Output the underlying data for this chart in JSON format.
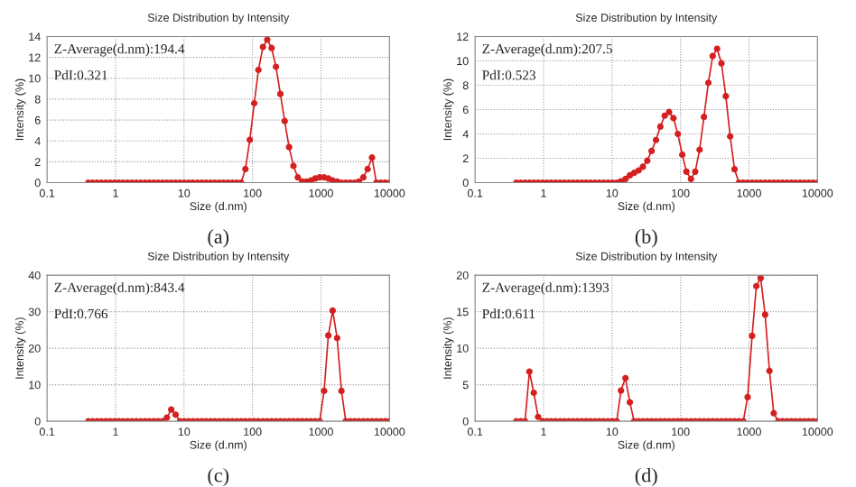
{
  "chart_data": [
    {
      "type": "line",
      "title": "Size Distribution by Intensity",
      "xlabel": "Size (d.nm)",
      "ylabel": "Intensity (%)",
      "log": "x",
      "grid": true,
      "marker": "circle",
      "line_style": "solid",
      "color": "#d42020",
      "xlim": [
        0.1,
        10000
      ],
      "xticks": [
        0.1,
        1,
        10,
        100,
        1000,
        10000
      ],
      "ylim": [
        0,
        14
      ],
      "yticks": [
        0,
        2,
        4,
        6,
        8,
        10,
        12,
        14
      ],
      "annotations": [
        "Z-Average(d.nm):194.4",
        "PdI:0.321",
        "(a)"
      ],
      "x": [
        0.4,
        0.463,
        0.537,
        0.621,
        0.72,
        0.833,
        0.965,
        1.12,
        1.29,
        1.5,
        1.74,
        2.01,
        2.33,
        2.7,
        3.12,
        3.62,
        4.19,
        4.85,
        5.62,
        6.5,
        7.53,
        8.72,
        10.1,
        11.7,
        13.5,
        15.7,
        18.2,
        21,
        24.4,
        28.2,
        32.7,
        37.8,
        43.8,
        50.8,
        58.8,
        68.1,
        78.8,
        91.3,
        106,
        122,
        142,
        164,
        190,
        220,
        255,
        295,
        342,
        396,
        459,
        531,
        615,
        712,
        825,
        955,
        1110,
        1280,
        1480,
        1720,
        1990,
        2300,
        2670,
        3090,
        3580,
        4150,
        4800,
        5560,
        6440,
        7460,
        8630,
        10000
      ],
      "values": [
        0,
        0,
        0,
        0,
        0,
        0,
        0,
        0,
        0,
        0,
        0,
        0,
        0,
        0,
        0,
        0,
        0,
        0,
        0,
        0,
        0,
        0,
        0,
        0,
        0,
        0,
        0,
        0,
        0,
        0,
        0,
        0,
        0,
        0,
        0,
        0,
        1.3,
        4.1,
        7.6,
        10.8,
        13.0,
        13.7,
        12.9,
        11.1,
        8.5,
        5.9,
        3.4,
        1.6,
        0.5,
        0.1,
        0.1,
        0.2,
        0.4,
        0.5,
        0.5,
        0.4,
        0.2,
        0.1,
        0,
        0,
        0,
        0,
        0.1,
        0.5,
        1.3,
        2.4,
        0,
        0,
        0,
        0
      ]
    },
    {
      "type": "line",
      "title": "Size Distribution by Intensity",
      "xlabel": "Size (d.nm)",
      "ylabel": "Intensity (%)",
      "log": "x",
      "grid": true,
      "marker": "circle",
      "line_style": "solid",
      "color": "#d42020",
      "xlim": [
        0.1,
        10000
      ],
      "xticks": [
        0.1,
        1,
        10,
        100,
        1000,
        10000
      ],
      "ylim": [
        0,
        12
      ],
      "yticks": [
        0,
        2,
        4,
        6,
        8,
        10,
        12
      ],
      "annotations": [
        "Z-Average(d.nm):207.5",
        "PdI:0.523",
        "(b)"
      ],
      "x": [
        0.4,
        0.463,
        0.537,
        0.621,
        0.72,
        0.833,
        0.965,
        1.12,
        1.29,
        1.5,
        1.74,
        2.01,
        2.33,
        2.7,
        3.12,
        3.62,
        4.19,
        4.85,
        5.62,
        6.5,
        7.53,
        8.72,
        10.1,
        11.7,
        13.5,
        15.7,
        18.2,
        21,
        24.4,
        28.2,
        32.7,
        37.8,
        43.8,
        50.8,
        58.8,
        68.1,
        78.8,
        91.3,
        106,
        122,
        142,
        164,
        190,
        220,
        255,
        295,
        342,
        396,
        459,
        531,
        615,
        712,
        825,
        955,
        1110,
        1280,
        1480,
        1720,
        1990,
        2300,
        2670,
        3090,
        3580,
        4150,
        4800,
        5560,
        6440,
        7460,
        8630,
        10000
      ],
      "values": [
        0,
        0,
        0,
        0,
        0,
        0,
        0,
        0,
        0,
        0,
        0,
        0,
        0,
        0,
        0,
        0,
        0,
        0,
        0,
        0,
        0,
        0,
        0,
        0,
        0.1,
        0.3,
        0.6,
        0.8,
        1.0,
        1.3,
        1.8,
        2.6,
        3.5,
        4.6,
        5.5,
        5.8,
        5.3,
        4.0,
        2.3,
        0.9,
        0.3,
        0.9,
        2.7,
        5.4,
        8.2,
        10.4,
        11.0,
        9.8,
        7.1,
        3.8,
        1.1,
        0,
        0,
        0,
        0,
        0,
        0,
        0,
        0,
        0,
        0,
        0,
        0,
        0,
        0,
        0,
        0,
        0,
        0,
        0
      ]
    },
    {
      "type": "line",
      "title": "Size Distribution by Intensity",
      "xlabel": "Size (d.nm)",
      "ylabel": "Intensity (%)",
      "log": "x",
      "grid": true,
      "marker": "circle",
      "line_style": "solid",
      "color": "#d42020",
      "xlim": [
        0.1,
        10000
      ],
      "xticks": [
        0.1,
        1,
        10,
        100,
        1000,
        10000
      ],
      "ylim": [
        0,
        40
      ],
      "yticks": [
        0,
        10,
        20,
        30,
        40
      ],
      "annotations": [
        "Z-Average(d.nm):843.4",
        "PdI:0.766",
        "(c)"
      ],
      "x": [
        0.4,
        0.463,
        0.537,
        0.621,
        0.72,
        0.833,
        0.965,
        1.12,
        1.29,
        1.5,
        1.74,
        2.01,
        2.33,
        2.7,
        3.12,
        3.62,
        4.19,
        4.85,
        5.62,
        6.5,
        7.53,
        8.72,
        10.1,
        11.7,
        13.5,
        15.7,
        18.2,
        21,
        24.4,
        28.2,
        32.7,
        37.8,
        43.8,
        50.8,
        58.8,
        68.1,
        78.8,
        91.3,
        106,
        122,
        142,
        164,
        190,
        220,
        255,
        295,
        342,
        396,
        459,
        531,
        615,
        712,
        825,
        955,
        1110,
        1280,
        1480,
        1720,
        1990,
        2300,
        2670,
        3090,
        3580,
        4150,
        4800,
        5560,
        6440,
        7460,
        8630,
        10000
      ],
      "values": [
        0,
        0,
        0,
        0,
        0,
        0,
        0,
        0,
        0,
        0,
        0,
        0,
        0,
        0,
        0,
        0,
        0,
        0,
        1.0,
        3.2,
        1.8,
        0,
        0,
        0,
        0,
        0,
        0,
        0,
        0,
        0,
        0,
        0,
        0,
        0,
        0,
        0,
        0,
        0,
        0,
        0,
        0,
        0,
        0,
        0,
        0,
        0,
        0,
        0,
        0,
        0,
        0,
        0,
        0,
        0,
        8.3,
        23.5,
        30.3,
        22.8,
        8.3,
        0,
        0,
        0,
        0,
        0,
        0,
        0,
        0,
        0,
        0,
        0
      ]
    },
    {
      "type": "line",
      "title": "Size Distribution by Intensity",
      "xlabel": "Size (d.nm)",
      "ylabel": "Intensity (%)",
      "log": "x",
      "grid": true,
      "marker": "circle",
      "line_style": "solid",
      "color": "#d42020",
      "xlim": [
        0.1,
        10000
      ],
      "xticks": [
        0.1,
        1,
        10,
        100,
        1000,
        10000
      ],
      "ylim": [
        0,
        20
      ],
      "yticks": [
        0,
        5,
        10,
        15,
        20
      ],
      "annotations": [
        "Z-Average(d.nm):1393",
        "PdI:0.611",
        "(d)"
      ],
      "x": [
        0.4,
        0.463,
        0.537,
        0.621,
        0.72,
        0.833,
        0.965,
        1.12,
        1.29,
        1.5,
        1.74,
        2.01,
        2.33,
        2.7,
        3.12,
        3.62,
        4.19,
        4.85,
        5.62,
        6.5,
        7.53,
        8.72,
        10.1,
        11.7,
        13.5,
        15.7,
        18.2,
        21,
        24.4,
        28.2,
        32.7,
        37.8,
        43.8,
        50.8,
        58.8,
        68.1,
        78.8,
        91.3,
        106,
        122,
        142,
        164,
        190,
        220,
        255,
        295,
        342,
        396,
        459,
        531,
        615,
        712,
        825,
        955,
        1110,
        1280,
        1480,
        1720,
        1990,
        2300,
        2670,
        3090,
        3580,
        4150,
        4800,
        5560,
        6440,
        7460,
        8630,
        10000
      ],
      "values": [
        0,
        0,
        0,
        6.8,
        3.9,
        0.6,
        0,
        0,
        0,
        0,
        0,
        0,
        0,
        0,
        0,
        0,
        0,
        0,
        0,
        0,
        0,
        0,
        0,
        0,
        4.2,
        5.9,
        2.6,
        0,
        0,
        0,
        0,
        0,
        0,
        0,
        0,
        0,
        0,
        0,
        0,
        0,
        0,
        0,
        0,
        0,
        0,
        0,
        0,
        0,
        0,
        0,
        0,
        0,
        0,
        3.3,
        11.7,
        18.5,
        19.6,
        14.6,
        6.9,
        1.1,
        0,
        0,
        0,
        0,
        0,
        0,
        0,
        0,
        0,
        0
      ]
    }
  ]
}
